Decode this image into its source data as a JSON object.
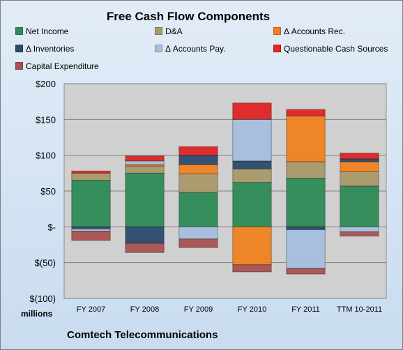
{
  "title": "Free Cash Flow Components",
  "units_label": "millions",
  "footer": "Comtech Telecommunications",
  "legend": [
    {
      "name": "Net Income",
      "color": "#2e8b57"
    },
    {
      "name": "D&A",
      "color": "#a89a6a"
    },
    {
      "name": "Δ Accounts Rec.",
      "color": "#f0821e"
    },
    {
      "name": "Δ Inventories",
      "color": "#2c4a6e"
    },
    {
      "name": "Δ Accounts Pay.",
      "color": "#a6bfdf"
    },
    {
      "name": "Questionable Cash Sources",
      "color": "#e02424"
    },
    {
      "name": "Capital Expenditure",
      "color": "#a85252"
    }
  ],
  "chart_data": {
    "type": "bar",
    "stacked": true,
    "title": "Free Cash Flow Components",
    "ylabel": "millions",
    "ylim": [
      -100,
      200
    ],
    "y_ticks": [
      200,
      150,
      100,
      50,
      0,
      -50,
      -100
    ],
    "y_tick_labels": [
      "$200",
      "$150",
      "$100",
      "$50",
      "$-",
      "$(50)",
      "$(100)"
    ],
    "grid": true,
    "categories": [
      "FY 2007",
      "FY 2008",
      "FY 2009",
      "FY 2010",
      "FY 2011",
      "TTM 10-2011"
    ],
    "series": [
      {
        "name": "Net Income",
        "values": [
          65,
          75,
          48,
          62,
          68,
          57
        ]
      },
      {
        "name": "D&A",
        "values": [
          10,
          10,
          26,
          19,
          23,
          20
        ]
      },
      {
        "name": "Δ Accounts Rec.",
        "values": [
          0,
          2,
          13,
          -53,
          64,
          14
        ]
      },
      {
        "name": "Δ Inventories",
        "values": [
          -3,
          -23,
          13,
          11,
          -4,
          4
        ]
      },
      {
        "name": "Δ Accounts Pay.",
        "values": [
          -3,
          5,
          -17,
          58,
          -54,
          -7
        ]
      },
      {
        "name": "Questionable Cash Sources",
        "values": [
          3,
          7,
          12,
          23,
          9,
          8
        ]
      },
      {
        "name": "Capital Expenditure",
        "values": [
          -13,
          -13,
          -12,
          -10,
          -8,
          -6
        ]
      }
    ]
  }
}
